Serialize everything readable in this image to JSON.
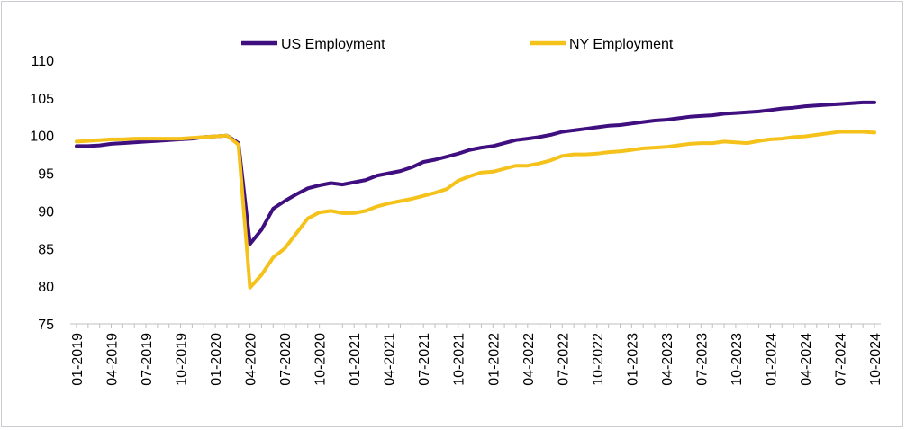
{
  "chart_data": {
    "type": "line",
    "title": "",
    "xlabel": "",
    "ylabel": "",
    "ylim": [
      75,
      110
    ],
    "y_ticks": [
      "75",
      "80",
      "85",
      "90",
      "95",
      "100",
      "105",
      "110"
    ],
    "x_tick_labels": [
      "01-2019",
      "04-2019",
      "07-2019",
      "10-2019",
      "01-2020",
      "04-2020",
      "07-2020",
      "10-2020",
      "01-2021",
      "04-2021",
      "07-2021",
      "10-2021",
      "01-2022",
      "04-2022",
      "07-2022",
      "10-2022",
      "01-2023",
      "04-2023",
      "07-2023",
      "10-2023",
      "01-2024",
      "04-2024",
      "07-2024",
      "10-2024"
    ],
    "legend_position": "top",
    "x": [
      "01-2019",
      "02-2019",
      "03-2019",
      "04-2019",
      "05-2019",
      "06-2019",
      "07-2019",
      "08-2019",
      "09-2019",
      "10-2019",
      "11-2019",
      "12-2019",
      "01-2020",
      "02-2020",
      "03-2020",
      "04-2020",
      "05-2020",
      "06-2020",
      "07-2020",
      "08-2020",
      "09-2020",
      "10-2020",
      "11-2020",
      "12-2020",
      "01-2021",
      "02-2021",
      "03-2021",
      "04-2021",
      "05-2021",
      "06-2021",
      "07-2021",
      "08-2021",
      "09-2021",
      "10-2021",
      "11-2021",
      "12-2021",
      "01-2022",
      "02-2022",
      "03-2022",
      "04-2022",
      "05-2022",
      "06-2022",
      "07-2022",
      "08-2022",
      "09-2022",
      "10-2022",
      "11-2022",
      "12-2022",
      "01-2023",
      "02-2023",
      "03-2023",
      "04-2023",
      "05-2023",
      "06-2023",
      "07-2023",
      "08-2023",
      "09-2023",
      "10-2023",
      "11-2023",
      "12-2023",
      "01-2024",
      "02-2024",
      "03-2024",
      "04-2024",
      "05-2024",
      "06-2024",
      "07-2024",
      "08-2024",
      "09-2024",
      "10-2024"
    ],
    "series": [
      {
        "name": "US Employment",
        "color": "#3f0f7f",
        "values": [
          98.6,
          98.6,
          98.7,
          98.9,
          99.0,
          99.1,
          99.2,
          99.3,
          99.4,
          99.5,
          99.6,
          99.8,
          99.9,
          100.0,
          99.0,
          85.6,
          87.5,
          90.3,
          91.3,
          92.2,
          93.0,
          93.4,
          93.7,
          93.5,
          93.8,
          94.1,
          94.7,
          95.0,
          95.3,
          95.8,
          96.5,
          96.8,
          97.2,
          97.6,
          98.1,
          98.4,
          98.6,
          99.0,
          99.4,
          99.6,
          99.8,
          100.1,
          100.5,
          100.7,
          100.9,
          101.1,
          101.3,
          101.4,
          101.6,
          101.8,
          102.0,
          102.1,
          102.3,
          102.5,
          102.6,
          102.7,
          102.9,
          103.0,
          103.1,
          103.2,
          103.4,
          103.6,
          103.7,
          103.9,
          104.0,
          104.1,
          104.2,
          104.3,
          104.4,
          104.4
        ]
      },
      {
        "name": "NY Employment",
        "color": "#f5c21b",
        "values": [
          99.2,
          99.3,
          99.4,
          99.5,
          99.5,
          99.6,
          99.6,
          99.6,
          99.6,
          99.6,
          99.7,
          99.8,
          99.9,
          100.0,
          98.8,
          79.8,
          81.5,
          83.8,
          85.0,
          87.0,
          89.0,
          89.8,
          90.0,
          89.7,
          89.7,
          90.0,
          90.6,
          91.0,
          91.3,
          91.6,
          92.0,
          92.4,
          92.9,
          94.0,
          94.6,
          95.1,
          95.2,
          95.6,
          96.0,
          96.0,
          96.3,
          96.7,
          97.3,
          97.5,
          97.5,
          97.6,
          97.8,
          97.9,
          98.1,
          98.3,
          98.4,
          98.5,
          98.7,
          98.9,
          99.0,
          99.0,
          99.2,
          99.1,
          99.0,
          99.3,
          99.5,
          99.6,
          99.8,
          99.9,
          100.1,
          100.3,
          100.5,
          100.5,
          100.5,
          100.4
        ]
      }
    ]
  }
}
